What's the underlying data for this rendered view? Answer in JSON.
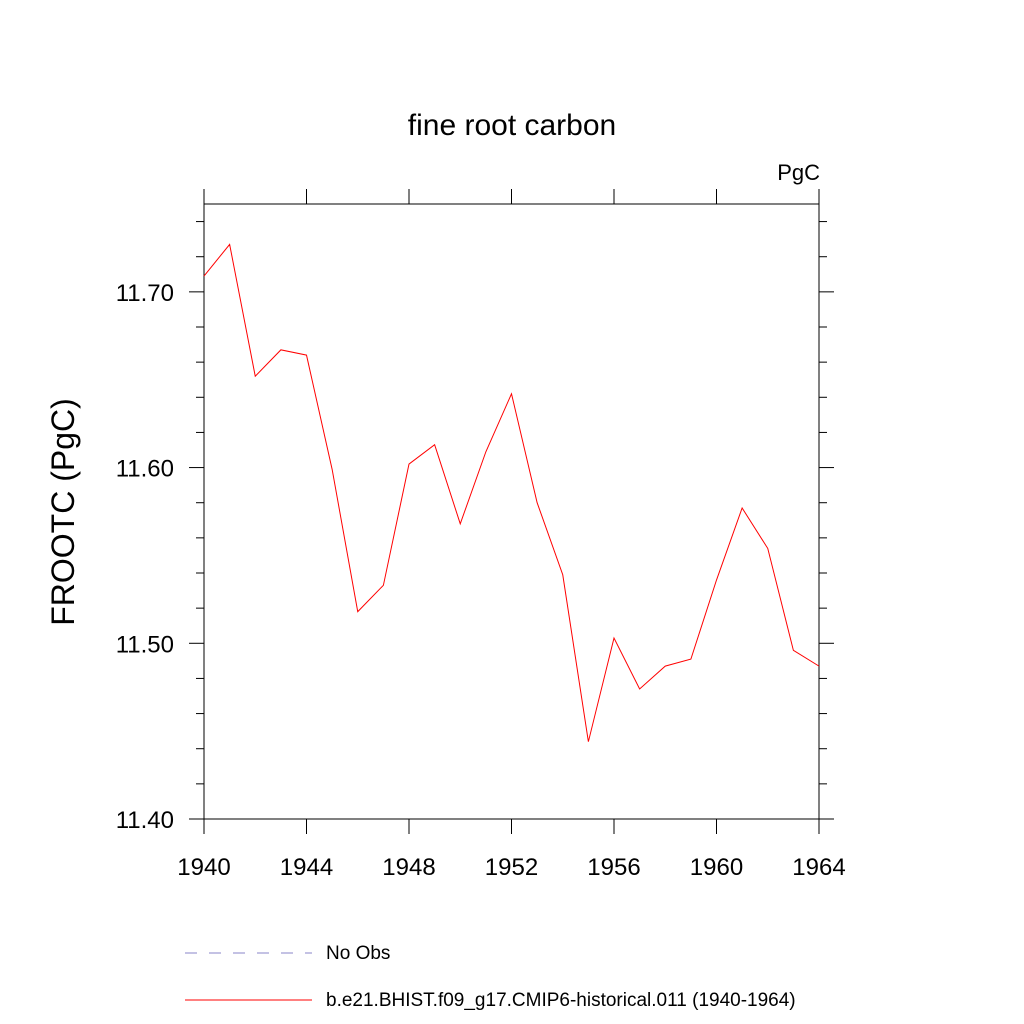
{
  "chart_data": {
    "type": "line",
    "title": "fine root carbon",
    "units_label": "PgC",
    "ylabel": "FROOTC  (PgC)",
    "xlabel": "",
    "xlim": [
      1940,
      1964
    ],
    "ylim": [
      11.4,
      11.75
    ],
    "x_ticks": [
      "1940",
      "1944",
      "1948",
      "1952",
      "1956",
      "1960",
      "1964"
    ],
    "y_ticks": [
      "11.40",
      "11.50",
      "11.60",
      "11.70"
    ],
    "grid": false,
    "legend_position": "bottom",
    "series": [
      {
        "name": "b.e21.BHIST.f09_g17.CMIP6-historical.011 (1940-1964)",
        "color": "#ff0000",
        "x": [
          1940,
          1941,
          1942,
          1943,
          1944,
          1945,
          1946,
          1947,
          1948,
          1949,
          1950,
          1951,
          1952,
          1953,
          1954,
          1955,
          1956,
          1957,
          1958,
          1959,
          1960,
          1961,
          1962,
          1963,
          1964
        ],
        "y": [
          11.709,
          11.727,
          11.652,
          11.667,
          11.664,
          11.599,
          11.518,
          11.533,
          11.602,
          11.613,
          11.568,
          11.609,
          11.642,
          11.58,
          11.539,
          11.444,
          11.503,
          11.474,
          11.487,
          11.491,
          11.536,
          11.577,
          11.554,
          11.496,
          11.487
        ]
      }
    ],
    "legend": [
      {
        "label": "No Obs",
        "style": "dashed",
        "color": "#8a86c8"
      },
      {
        "label": "b.e21.BHIST.f09_g17.CMIP6-historical.011 (1940-1964)",
        "style": "solid",
        "color": "#ff0000"
      }
    ]
  }
}
